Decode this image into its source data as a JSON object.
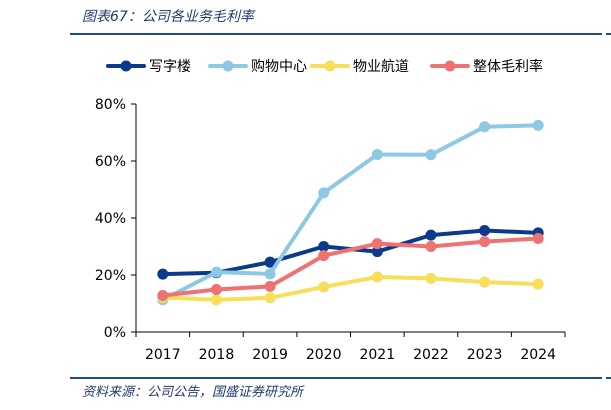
{
  "figure": {
    "title": "图表67：公司各业务毛利率",
    "source": "资料来源：公司公告，国盛证券研究所"
  },
  "chart_data": {
    "type": "line",
    "x": [
      "2017",
      "2018",
      "2019",
      "2020",
      "2021",
      "2022",
      "2023",
      "2024"
    ],
    "ylim": [
      0,
      80
    ],
    "yticks": [
      "0%",
      "20%",
      "40%",
      "60%",
      "80%"
    ],
    "ytick_values": [
      0,
      20,
      40,
      60,
      80
    ],
    "grid": false,
    "legend_position": "top",
    "series": [
      {
        "name": "写字楼",
        "color": "#0b3a8c",
        "values": [
          20.3,
          20.8,
          24.5,
          30.0,
          28.2,
          34.0,
          35.6,
          34.8
        ]
      },
      {
        "name": "购物中心",
        "color": "#8ec9e3",
        "values": [
          11.3,
          21.0,
          20.4,
          48.8,
          62.3,
          62.2,
          72.0,
          72.5
        ]
      },
      {
        "name": "物业航道",
        "color": "#f7df5a",
        "values": [
          12.1,
          11.3,
          12.0,
          15.8,
          19.3,
          18.8,
          17.5,
          16.8
        ]
      },
      {
        "name": "整体毛利率",
        "color": "#ee7272",
        "values": [
          12.8,
          14.9,
          16.0,
          26.8,
          31.0,
          30.0,
          31.7,
          32.8
        ]
      }
    ]
  }
}
